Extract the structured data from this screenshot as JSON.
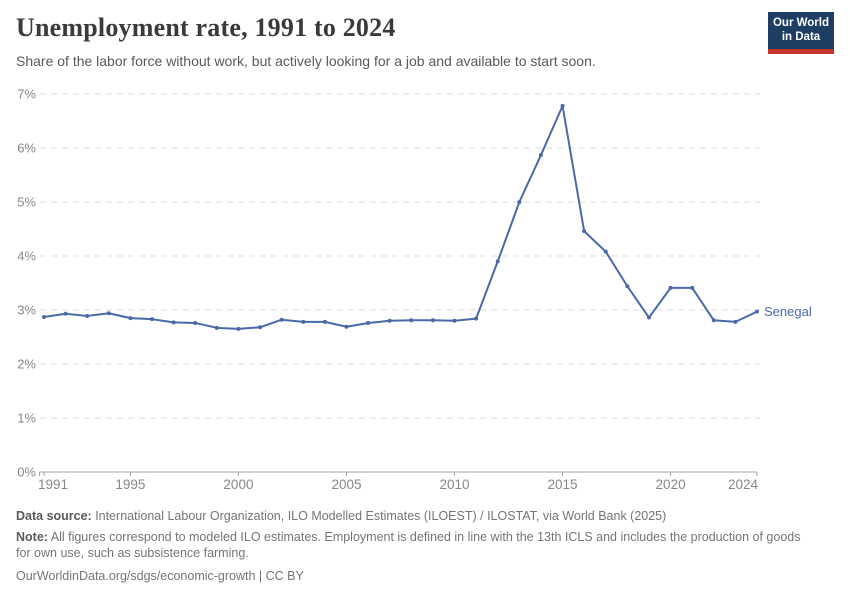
{
  "header": {
    "title": "Unemployment rate, 1991 to 2024",
    "subtitle": "Share of the labor force without work, but actively looking for a job and available to start soon.",
    "logo_line1": "Our World",
    "logo_line2": "in Data"
  },
  "chart_data": {
    "type": "line",
    "title": "Unemployment rate, 1991 to 2024",
    "xlabel": "",
    "ylabel": "",
    "xlim": [
      1991,
      2024
    ],
    "ylim": [
      0,
      7
    ],
    "x_ticks": [
      1991,
      1995,
      2000,
      2005,
      2010,
      2015,
      2020,
      2024
    ],
    "y_ticks": [
      0,
      1,
      2,
      3,
      4,
      5,
      6,
      7
    ],
    "y_tick_suffix": "%",
    "grid": "horizontal-dashed",
    "legend_position": "end-of-line-label",
    "x": [
      1991,
      1992,
      1993,
      1994,
      1995,
      1996,
      1997,
      1998,
      1999,
      2000,
      2001,
      2002,
      2003,
      2004,
      2005,
      2006,
      2007,
      2008,
      2009,
      2010,
      2011,
      2012,
      2013,
      2014,
      2015,
      2016,
      2017,
      2018,
      2019,
      2020,
      2021,
      2022,
      2023,
      2024
    ],
    "series": [
      {
        "name": "Senegal",
        "color": "#4a69a8",
        "values": [
          2.87,
          2.93,
          2.89,
          2.94,
          2.85,
          2.83,
          2.77,
          2.76,
          2.67,
          2.65,
          2.68,
          2.82,
          2.78,
          2.78,
          2.69,
          2.76,
          2.8,
          2.81,
          2.81,
          2.8,
          2.84,
          3.9,
          5.0,
          5.87,
          6.78,
          4.46,
          4.08,
          3.44,
          2.86,
          3.41,
          3.41,
          2.81,
          2.78,
          2.97
        ]
      }
    ]
  },
  "footer": {
    "datasource_label": "Data source:",
    "datasource_text": " International Labour Organization, ILO Modelled Estimates (ILOEST) / ILOSTAT, via World Bank (2025)",
    "note_label": "Note:",
    "note_text": " All figures correspond to modeled ILO estimates. Employment is defined in line with the 13th ICLS and includes the production of goods for own use, such as subsistence farming.",
    "citation": "OurWorldinData.org/sdgs/economic-growth | CC BY"
  },
  "colors": {
    "line": "#4a69a8",
    "grid": "#dcdcdc",
    "axis": "#a3a3a3",
    "tick_label": "#878787",
    "title": "#3a3a3a",
    "subtitle": "#595959",
    "footer": "#757575",
    "logo_bg": "#1d3d63",
    "logo_red": "#c5352d"
  }
}
